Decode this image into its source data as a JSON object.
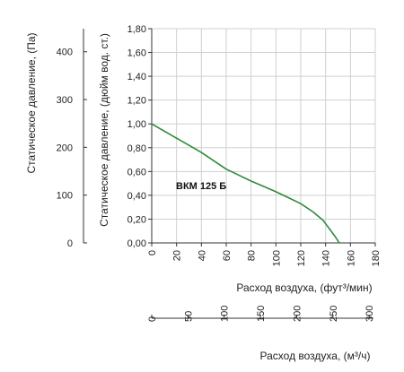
{
  "chart_data": {
    "type": "line",
    "left_axis_pa": {
      "label": "Статическое давление, (Па)",
      "ticks": [
        "400",
        "300",
        "200",
        "100",
        "0"
      ],
      "tick_values": [
        400,
        300,
        200,
        100,
        0
      ],
      "range": [
        0,
        448.3
      ]
    },
    "left_axis_inwg": {
      "label": "Статическое давление, (дюйм вод. ст.)",
      "ticks": [
        "1,80",
        "1,60",
        "1,40",
        "1,20",
        "1,00",
        "0,80",
        "0,60",
        "0,40",
        "0,20",
        "0,00"
      ],
      "tick_values": [
        1.8,
        1.6,
        1.4,
        1.2,
        1.0,
        0.8,
        0.6,
        0.4,
        0.2,
        0.0
      ],
      "range": [
        0,
        1.8
      ]
    },
    "x_axis_cfm": {
      "label": "Расход воздуха, (фут³/мин)",
      "ticks": [
        "0",
        "20",
        "40",
        "60",
        "80",
        "100",
        "120",
        "140",
        "160",
        "180"
      ],
      "tick_values": [
        0,
        20,
        40,
        60,
        80,
        100,
        120,
        140,
        160,
        180
      ],
      "range": [
        0,
        180
      ]
    },
    "x_axis_m3h": {
      "label": "Расход воздуха, (м³/ч)",
      "ticks": [
        "0",
        "50",
        "100",
        "150",
        "200",
        "250",
        "300"
      ],
      "tick_values": [
        0,
        50,
        100,
        150,
        200,
        250,
        300
      ],
      "range": [
        0,
        306
      ]
    },
    "series": [
      {
        "name": "ВКМ 125 Б",
        "color": "#2e8b3a",
        "x": [
          0,
          10,
          20,
          30,
          40,
          50,
          60,
          70,
          80,
          90,
          100,
          110,
          120,
          130,
          138,
          143,
          148,
          151
        ],
        "y": [
          1.0,
          0.94,
          0.88,
          0.82,
          0.76,
          0.69,
          0.62,
          0.57,
          0.52,
          0.475,
          0.43,
          0.38,
          0.33,
          0.26,
          0.19,
          0.12,
          0.05,
          0.0
        ]
      }
    ],
    "grid": true
  }
}
